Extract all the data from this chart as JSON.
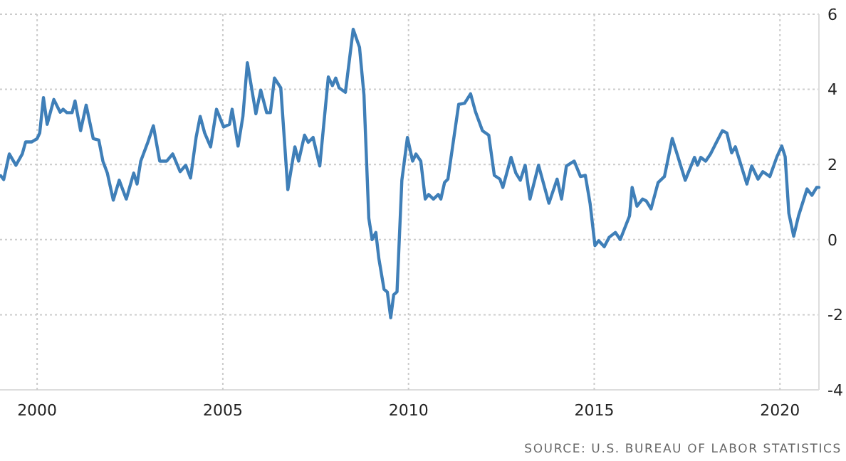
{
  "chart_data": {
    "type": "line",
    "xlim": [
      1999,
      2021.05
    ],
    "ylim": [
      -4,
      6
    ],
    "xticks": [
      2000,
      2005,
      2010,
      2015,
      2020
    ],
    "yticks": [
      -4,
      -2,
      0,
      2,
      4,
      6
    ],
    "grid": true,
    "tick_labels": "xy",
    "annotations": [
      "SOURCE: U.S. BUREAU OF LABOR STATISTICS"
    ],
    "series": [
      {
        "color": "#3f7fb8",
        "x": [
          1999.02,
          1999.1,
          1999.25,
          1999.43,
          1999.6,
          1999.69,
          1999.85,
          2000.0,
          2000.07,
          2000.17,
          2000.27,
          2000.45,
          2000.62,
          2000.7,
          2000.8,
          2000.94,
          2001.02,
          2001.17,
          2001.32,
          2001.51,
          2001.66,
          2001.77,
          2001.89,
          2002.05,
          2002.21,
          2002.4,
          2002.6,
          2002.69,
          2002.79,
          2002.98,
          2003.13,
          2003.3,
          2003.49,
          2003.65,
          2003.85,
          2004.0,
          2004.13,
          2004.28,
          2004.39,
          2004.51,
          2004.67,
          2004.83,
          2005.02,
          2005.18,
          2005.25,
          2005.41,
          2005.54,
          2005.66,
          2005.89,
          2006.02,
          2006.18,
          2006.28,
          2006.39,
          2006.56,
          2006.75,
          2006.94,
          2007.04,
          2007.2,
          2007.3,
          2007.43,
          2007.61,
          2007.84,
          2007.95,
          2008.04,
          2008.13,
          2008.3,
          2008.51,
          2008.68,
          2008.8,
          2008.93,
          2009.02,
          2009.12,
          2009.2,
          2009.34,
          2009.43,
          2009.52,
          2009.6,
          2009.69,
          2009.82,
          2009.97,
          2010.11,
          2010.2,
          2010.33,
          2010.45,
          2010.54,
          2010.67,
          2010.8,
          2010.87,
          2010.97,
          2011.06,
          2011.35,
          2011.51,
          2011.67,
          2011.8,
          2011.99,
          2012.16,
          2012.31,
          2012.46,
          2012.54,
          2012.76,
          2012.89,
          2013.01,
          2013.14,
          2013.27,
          2013.5,
          2013.78,
          2014.0,
          2014.12,
          2014.25,
          2014.46,
          2014.63,
          2014.76,
          2014.89,
          2015.02,
          2015.12,
          2015.27,
          2015.4,
          2015.57,
          2015.7,
          2015.95,
          2016.02,
          2016.15,
          2016.3,
          2016.4,
          2016.53,
          2016.72,
          2016.89,
          2017.1,
          2017.23,
          2017.45,
          2017.7,
          2017.78,
          2017.87,
          2018.0,
          2018.13,
          2018.29,
          2018.45,
          2018.57,
          2018.7,
          2018.8,
          2018.96,
          2019.11,
          2019.24,
          2019.41,
          2019.54,
          2019.73,
          2019.92,
          2020.05,
          2020.14,
          2020.24,
          2020.37,
          2020.5,
          2020.73,
          2020.86,
          2020.99,
          2021.05
        ],
        "values": [
          1.7,
          1.6,
          2.28,
          1.98,
          2.28,
          2.6,
          2.6,
          2.69,
          2.84,
          3.78,
          3.07,
          3.73,
          3.39,
          3.47,
          3.38,
          3.38,
          3.69,
          2.9,
          3.58,
          2.69,
          2.65,
          2.09,
          1.77,
          1.05,
          1.58,
          1.08,
          1.77,
          1.48,
          2.09,
          2.59,
          3.03,
          2.09,
          2.09,
          2.28,
          1.81,
          1.98,
          1.64,
          2.72,
          3.28,
          2.84,
          2.47,
          3.47,
          3.0,
          3.07,
          3.47,
          2.49,
          3.28,
          4.71,
          3.35,
          3.98,
          3.38,
          3.38,
          4.3,
          4.04,
          1.33,
          2.47,
          2.09,
          2.78,
          2.59,
          2.72,
          1.96,
          4.33,
          4.1,
          4.3,
          4.04,
          3.92,
          5.6,
          5.12,
          3.85,
          0.57,
          0.0,
          0.19,
          -0.5,
          -1.32,
          -1.4,
          -2.08,
          -1.47,
          -1.39,
          1.58,
          2.72,
          2.09,
          2.28,
          2.09,
          1.08,
          1.2,
          1.08,
          1.2,
          1.08,
          1.52,
          1.61,
          3.6,
          3.63,
          3.88,
          3.41,
          2.9,
          2.78,
          1.71,
          1.61,
          1.39,
          2.19,
          1.77,
          1.58,
          1.98,
          1.08,
          1.98,
          0.97,
          1.61,
          1.08,
          1.96,
          2.09,
          1.68,
          1.71,
          0.95,
          -0.16,
          -0.03,
          -0.19,
          0.06,
          0.19,
          0.0,
          0.63,
          1.39,
          0.89,
          1.08,
          1.03,
          0.82,
          1.52,
          1.68,
          2.69,
          2.28,
          1.58,
          2.19,
          1.98,
          2.19,
          2.09,
          2.28,
          2.59,
          2.9,
          2.84,
          2.31,
          2.47,
          1.96,
          1.48,
          1.96,
          1.61,
          1.81,
          1.68,
          2.21,
          2.49,
          2.21,
          0.7,
          0.09,
          0.63,
          1.35,
          1.18,
          1.39,
          1.39
        ]
      }
    ]
  }
}
